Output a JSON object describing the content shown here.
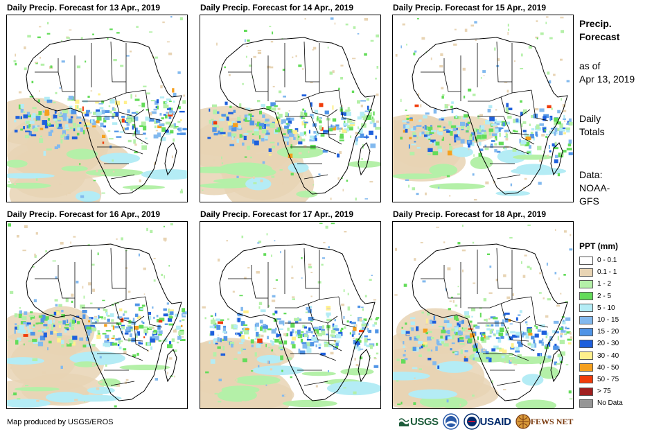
{
  "panels": [
    {
      "title": "Daily Precip. Forecast for 13 Apr., 2019"
    },
    {
      "title": "Daily Precip. Forecast for 14 Apr., 2019"
    },
    {
      "title": "Daily Precip. Forecast for 15 Apr., 2019"
    },
    {
      "title": "Daily Precip. Forecast for 16 Apr., 2019"
    },
    {
      "title": "Daily Precip. Forecast for 17 Apr., 2019"
    },
    {
      "title": "Daily Precip. Forecast for 18 Apr., 2019"
    }
  ],
  "sidebar": {
    "title_line1": "Precip.",
    "title_line2": "Forecast",
    "asof_line1": "as of",
    "asof_line2": "Apr 13, 2019",
    "totals_line1": "Daily",
    "totals_line2": "Totals",
    "data_line1": "Data:",
    "data_line2": "NOAA-",
    "data_line3": "GFS"
  },
  "legend": {
    "title": "PPT (mm)",
    "items": [
      {
        "label": "0 - 0.1",
        "color": "#ffffff"
      },
      {
        "label": "0.1 - 1",
        "color": "#e8d4b4"
      },
      {
        "label": "1 - 2",
        "color": "#b4f0a8"
      },
      {
        "label": "2 - 5",
        "color": "#64dc5a"
      },
      {
        "label": "5 - 10",
        "color": "#b4ecf5"
      },
      {
        "label": "10 - 15",
        "color": "#82b9ee"
      },
      {
        "label": "15 - 20",
        "color": "#5094e6"
      },
      {
        "label": "20 - 30",
        "color": "#1e5fdc"
      },
      {
        "label": "30 - 40",
        "color": "#fff08c"
      },
      {
        "label": "40 - 50",
        "color": "#f5a01e"
      },
      {
        "label": "50 - 75",
        "color": "#f03c0a"
      },
      {
        "label": "> 75",
        "color": "#a01e1e"
      },
      {
        "label": "No Data",
        "color": "#969696"
      }
    ]
  },
  "footer": {
    "credit": "Map produced by USGS/EROS",
    "logos": {
      "usgs": "USGS",
      "usaid": "USAID",
      "usaid_red": "",
      "fews": "FEWS NET"
    }
  }
}
